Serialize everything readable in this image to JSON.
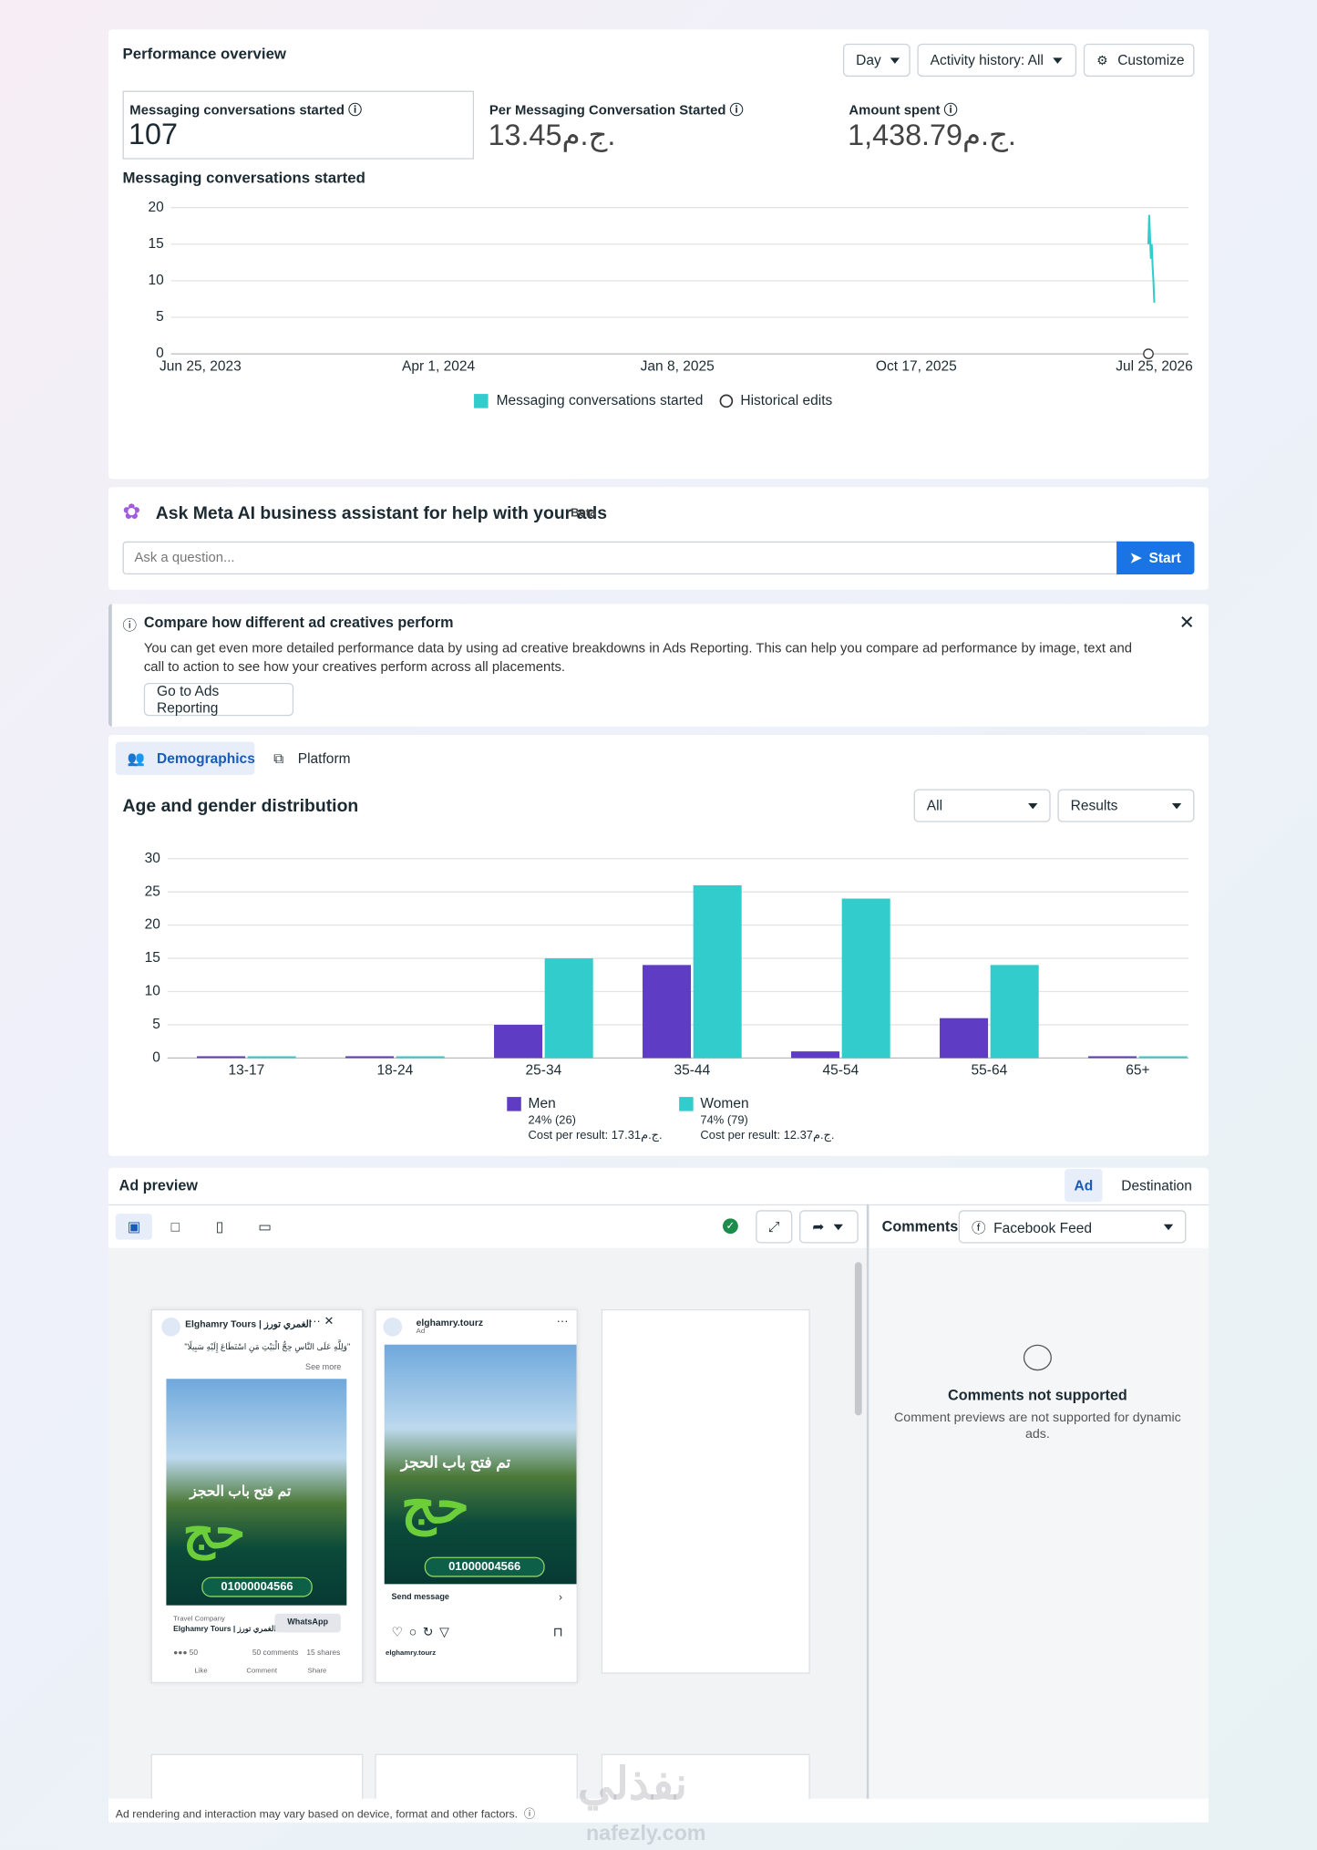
{
  "performance": {
    "title": "Performance overview",
    "controls": [
      "Day",
      "Activity history: All",
      "Customize"
    ],
    "metrics": [
      {
        "label": "Messaging conversations started",
        "value": "107"
      },
      {
        "label": "Per Messaging Conversation Started",
        "value": "13.45ج.م."
      },
      {
        "label": "Amount spent",
        "value": "1,438.79ج.م."
      }
    ],
    "historical_edits": "Historical edits"
  },
  "chart_data": [
    {
      "type": "line",
      "title": "Messaging conversations started",
      "x": [
        "2026-07-18",
        "2026-07-19",
        "2026-07-20",
        "2026-07-21",
        "2026-07-22",
        "2026-07-23",
        "2026-07-24",
        "2026-07-25"
      ],
      "series": [
        {
          "name": "Messaging conversations started",
          "color": "#33cccc",
          "values": [
            15,
            19,
            16,
            13,
            15,
            12,
            10,
            7
          ]
        }
      ],
      "xlim": [
        "2023-06-25",
        "2026-07-25"
      ],
      "xticks": [
        {
          "value": "2023-06-25",
          "label": "Jun 25, 2023"
        },
        {
          "value": "2024-04-01",
          "label": "Apr 1, 2024"
        },
        {
          "value": "2025-01-08",
          "label": "Jan 8, 2025"
        },
        {
          "value": "2025-10-17",
          "label": "Oct 17, 2025"
        },
        {
          "value": "2026-07-25",
          "label": "Jul 25, 2026"
        }
      ],
      "ylim": [
        0,
        20
      ],
      "yticks": [
        0,
        5,
        10,
        15,
        20
      ],
      "grid": true
    },
    {
      "type": "bar",
      "title": "Age and gender distribution",
      "categories": [
        "13-17",
        "18-24",
        "25-34",
        "35-44",
        "45-54",
        "55-64",
        "65+"
      ],
      "series": [
        {
          "name": "Men",
          "color": "#5e3cc4",
          "values": [
            0,
            0,
            5,
            14,
            1,
            6,
            0
          ],
          "share_label": "24% (26)",
          "cost_label": "Cost per result: 17.31ج.م."
        },
        {
          "name": "Women",
          "color": "#33cccc",
          "values": [
            0,
            0,
            15,
            26,
            24,
            14,
            0
          ],
          "share_label": "74% (79)",
          "cost_label": "Cost per result: 12.37ج.م."
        }
      ],
      "ylim": [
        0,
        30
      ],
      "yticks": [
        0,
        5,
        10,
        15,
        20,
        25,
        30
      ],
      "grid": true
    }
  ],
  "assistant": {
    "title": "Ask Meta AI business assistant for help with your ads",
    "badge": "Beta",
    "placeholder": "Ask a question...",
    "button": "Start"
  },
  "notice": {
    "title": "Compare how different ad creatives perform",
    "body": "You can get even more detailed performance data by using ad creative breakdowns in Ads Reporting. This can help you compare ad performance by image, text and call to action to see how your creatives perform across all placements.",
    "button": "Go to Ads Reporting"
  },
  "demographics": {
    "tabs": [
      "Demographics",
      "Platform"
    ],
    "filters": [
      "All",
      "Results"
    ]
  },
  "ad_preview": {
    "title": "Ad preview",
    "tabs": [
      "Ad",
      "Destination"
    ],
    "comments_label": "Comments",
    "placement": "Facebook Feed",
    "empty_title": "Comments not supported",
    "empty_body": "Comment previews are not supported for dynamic ads.",
    "footer": "Ad rendering and interaction may vary based on device, format and other factors.",
    "facebook_card": {
      "page_name": "Elghamry Tours | الغمري تورز",
      "caption": "\"وَلِلَّهِ عَلَى النَّاسِ حِجُّ الْبَيْتِ مَنِ اسْتَطَاعَ إِلَيْهِ سَبِيلًا\"",
      "see_more": "See more",
      "headline": "تم فتح باب الحجز",
      "big_word": "حج",
      "phone": "01000004566",
      "category": "Travel Company",
      "cta": "WhatsApp",
      "reactions": "50",
      "comments": "50 comments",
      "shares": "15 shares",
      "actions": [
        "Like",
        "Comment",
        "Share"
      ]
    },
    "instagram_card": {
      "handle": "elghamry.tourz",
      "sponsored": "Ad",
      "headline": "تم فتح باب الحجز",
      "big_word": "حج",
      "phone": "01000004566",
      "cta": "Send message"
    }
  },
  "watermark": {
    "arabic": "نفذلي",
    "latin": "nafezly.com"
  }
}
